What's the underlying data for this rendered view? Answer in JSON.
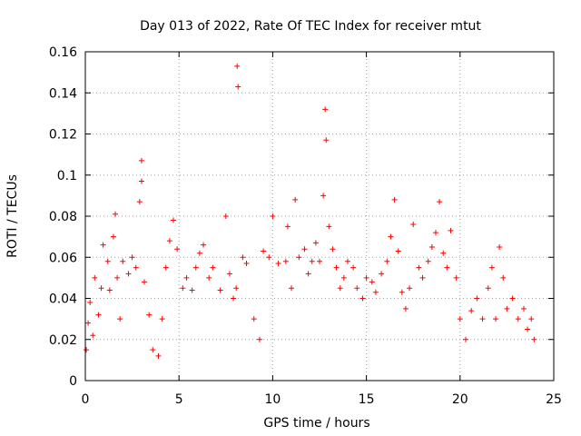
{
  "chart_data": {
    "type": "scatter",
    "title": "Day 013 of 2022, Rate Of TEC Index for receiver mtut",
    "xlabel": "GPS time / hours",
    "ylabel": "ROTI / TECUs",
    "xlim": [
      0,
      25
    ],
    "ylim": [
      0,
      0.16
    ],
    "x_ticks": [
      "0",
      "5",
      "10",
      "15",
      "20",
      "25"
    ],
    "y_ticks": [
      "0",
      "0.02",
      "0.04",
      "0.06",
      "0.08",
      "0.1",
      "0.12",
      "0.14",
      "0.16"
    ],
    "grid": true,
    "marker": "+",
    "colors": {
      "points": "#ff0000",
      "grid": "#a0a0a0",
      "axes": "#000000"
    },
    "series": [
      {
        "values": [
          [
            0.05,
            0.015
          ],
          [
            0.15,
            0.028
          ],
          [
            0.25,
            0.038
          ],
          [
            0.4,
            0.022
          ],
          [
            0.5,
            0.05
          ],
          [
            0.7,
            0.032
          ],
          [
            0.85,
            0.045
          ],
          [
            0.95,
            0.066
          ],
          [
            1.2,
            0.058
          ],
          [
            1.3,
            0.044
          ],
          [
            1.5,
            0.07
          ],
          [
            1.6,
            0.081
          ],
          [
            1.7,
            0.05
          ],
          [
            1.85,
            0.03
          ],
          [
            2.0,
            0.058
          ],
          [
            2.3,
            0.052
          ],
          [
            2.5,
            0.06
          ],
          [
            2.7,
            0.055
          ],
          [
            2.9,
            0.087
          ],
          [
            3.0,
            0.107
          ],
          [
            3.0,
            0.097
          ],
          [
            3.15,
            0.048
          ],
          [
            3.4,
            0.032
          ],
          [
            3.6,
            0.015
          ],
          [
            3.9,
            0.012
          ],
          [
            4.1,
            0.03
          ],
          [
            4.3,
            0.055
          ],
          [
            4.5,
            0.068
          ],
          [
            4.7,
            0.078
          ],
          [
            4.9,
            0.064
          ],
          [
            5.2,
            0.045
          ],
          [
            5.4,
            0.05
          ],
          [
            5.7,
            0.044
          ],
          [
            5.9,
            0.055
          ],
          [
            6.1,
            0.062
          ],
          [
            6.3,
            0.066
          ],
          [
            6.6,
            0.05
          ],
          [
            6.8,
            0.055
          ],
          [
            7.2,
            0.044
          ],
          [
            7.5,
            0.08
          ],
          [
            7.7,
            0.052
          ],
          [
            7.9,
            0.04
          ],
          [
            8.05,
            0.045
          ],
          [
            8.1,
            0.153
          ],
          [
            8.15,
            0.143
          ],
          [
            8.4,
            0.06
          ],
          [
            8.6,
            0.057
          ],
          [
            9.0,
            0.03
          ],
          [
            9.3,
            0.02
          ],
          [
            9.5,
            0.063
          ],
          [
            9.8,
            0.06
          ],
          [
            10.0,
            0.08
          ],
          [
            10.3,
            0.057
          ],
          [
            10.7,
            0.058
          ],
          [
            10.8,
            0.075
          ],
          [
            11.0,
            0.045
          ],
          [
            11.2,
            0.088
          ],
          [
            11.4,
            0.06
          ],
          [
            11.7,
            0.064
          ],
          [
            11.9,
            0.052
          ],
          [
            12.1,
            0.058
          ],
          [
            12.3,
            0.067
          ],
          [
            12.5,
            0.058
          ],
          [
            12.7,
            0.09
          ],
          [
            12.8,
            0.132
          ],
          [
            12.85,
            0.117
          ],
          [
            13.0,
            0.075
          ],
          [
            13.2,
            0.064
          ],
          [
            13.4,
            0.055
          ],
          [
            13.6,
            0.045
          ],
          [
            13.8,
            0.05
          ],
          [
            14.0,
            0.058
          ],
          [
            14.3,
            0.055
          ],
          [
            14.5,
            0.045
          ],
          [
            14.8,
            0.04
          ],
          [
            15.0,
            0.05
          ],
          [
            15.3,
            0.048
          ],
          [
            15.5,
            0.043
          ],
          [
            15.8,
            0.052
          ],
          [
            16.1,
            0.058
          ],
          [
            16.3,
            0.07
          ],
          [
            16.5,
            0.088
          ],
          [
            16.7,
            0.063
          ],
          [
            16.9,
            0.043
          ],
          [
            17.1,
            0.035
          ],
          [
            17.3,
            0.045
          ],
          [
            17.5,
            0.076
          ],
          [
            17.8,
            0.055
          ],
          [
            18.0,
            0.05
          ],
          [
            18.3,
            0.058
          ],
          [
            18.5,
            0.065
          ],
          [
            18.7,
            0.072
          ],
          [
            18.9,
            0.087
          ],
          [
            19.1,
            0.062
          ],
          [
            19.3,
            0.055
          ],
          [
            19.5,
            0.073
          ],
          [
            19.8,
            0.05
          ],
          [
            20.0,
            0.03
          ],
          [
            20.3,
            0.02
          ],
          [
            20.6,
            0.034
          ],
          [
            20.9,
            0.04
          ],
          [
            21.2,
            0.03
          ],
          [
            21.5,
            0.045
          ],
          [
            21.7,
            0.055
          ],
          [
            21.9,
            0.03
          ],
          [
            22.1,
            0.065
          ],
          [
            22.3,
            0.05
          ],
          [
            22.5,
            0.035
          ],
          [
            22.8,
            0.04
          ],
          [
            23.1,
            0.03
          ],
          [
            23.4,
            0.035
          ],
          [
            23.6,
            0.025
          ],
          [
            23.8,
            0.03
          ],
          [
            23.95,
            0.02
          ]
        ]
      }
    ]
  }
}
